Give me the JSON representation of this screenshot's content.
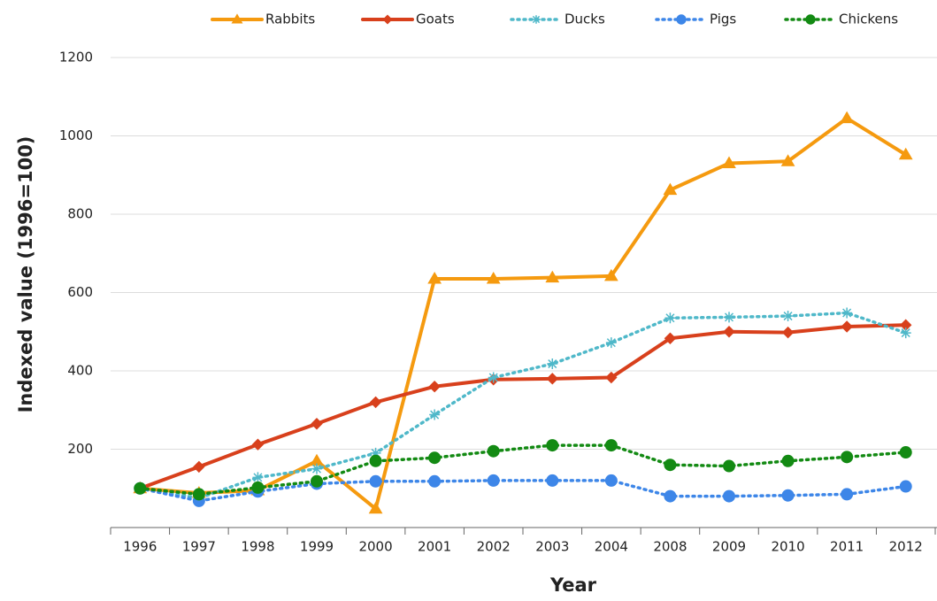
{
  "chart_data": {
    "type": "line",
    "x_label": "Year",
    "y_label": "Indexed value (1996=100)",
    "categories": [
      "1996",
      "1997",
      "1998",
      "1999",
      "2000",
      "2001",
      "2002",
      "2003",
      "2004",
      "2008",
      "2009",
      "2010",
      "2011",
      "2012"
    ],
    "series": [
      {
        "name": "Rabbits",
        "color": "#f59a0f",
        "dash": "solid",
        "marker": "triangle",
        "values": [
          100,
          88,
          95,
          170,
          48,
          635,
          635,
          638,
          642,
          862,
          930,
          935,
          1045,
          952
        ]
      },
      {
        "name": "Goats",
        "color": "#d8401c",
        "dash": "solid",
        "marker": "diamond",
        "values": [
          100,
          155,
          212,
          265,
          320,
          360,
          378,
          380,
          383,
          483,
          500,
          498,
          513,
          517
        ]
      },
      {
        "name": "Ducks",
        "color": "#4fb8c9",
        "dash": "dotted",
        "marker": "asterisk",
        "values": [
          100,
          75,
          128,
          150,
          190,
          288,
          383,
          418,
          472,
          535,
          537,
          540,
          548,
          497
        ]
      },
      {
        "name": "Pigs",
        "color": "#3d86e8",
        "dash": "dotted",
        "marker": "circle",
        "values": [
          100,
          68,
          92,
          112,
          118,
          118,
          120,
          120,
          120,
          80,
          80,
          82,
          85,
          105
        ]
      },
      {
        "name": "Chickens",
        "color": "#138a13",
        "dash": "dotted",
        "marker": "circle",
        "values": [
          100,
          85,
          102,
          118,
          170,
          178,
          195,
          210,
          210,
          160,
          157,
          170,
          180,
          192
        ]
      }
    ],
    "ylim": [
      0,
      1200
    ],
    "yticks": [
      200,
      400,
      600,
      800,
      1000,
      1200
    ],
    "grid": true,
    "legend": "top"
  }
}
